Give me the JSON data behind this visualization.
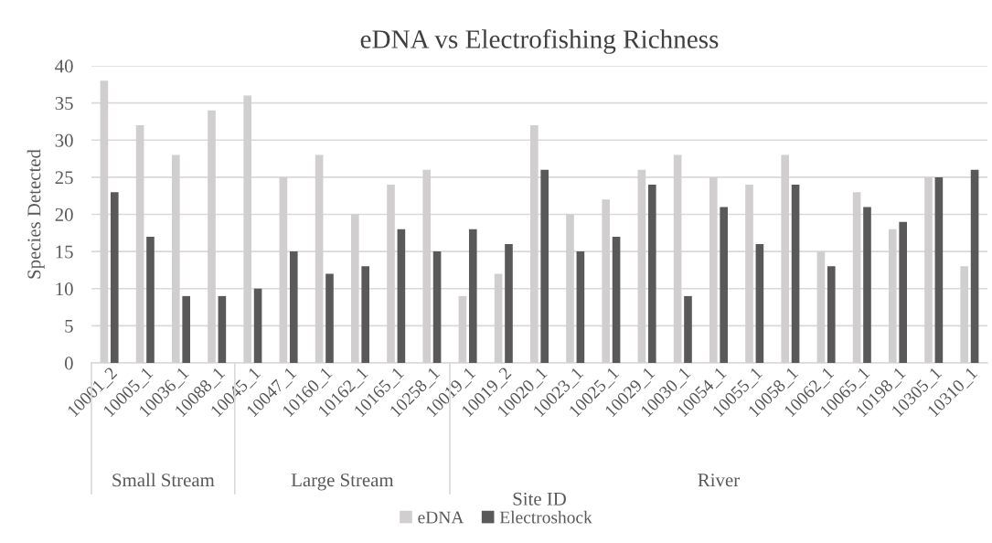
{
  "chart_data": {
    "type": "bar",
    "title": "eDNA vs Electrofishing Richness",
    "xlabel": "Site ID",
    "ylabel": "Species Detected",
    "categories": [
      "10001_2",
      "10005_1",
      "10036_1",
      "10088_1",
      "10045_1",
      "10047_1",
      "10160_1",
      "10162_1",
      "10165_1",
      "10258_1",
      "10019_1",
      "10019_2",
      "10020_1",
      "10023_1",
      "10025_1",
      "10029_1",
      "10030_1",
      "10054_1",
      "10055_1",
      "10058_1",
      "10062_1",
      "10065_1",
      "10198_1",
      "10305_1",
      "10310_1"
    ],
    "series": [
      {
        "name": "eDNA",
        "color": "#d0cece",
        "values": [
          38,
          32,
          28,
          34,
          36,
          25,
          28,
          20,
          24,
          26,
          9,
          12,
          32,
          20,
          22,
          26,
          28,
          25,
          24,
          28,
          15,
          23,
          18,
          25,
          13
        ]
      },
      {
        "name": "Electroshock",
        "color": "#595959",
        "values": [
          23,
          17,
          9,
          9,
          10,
          15,
          12,
          13,
          18,
          15,
          18,
          16,
          26,
          15,
          17,
          24,
          9,
          21,
          16,
          24,
          13,
          21,
          19,
          25,
          26
        ]
      }
    ],
    "annotations": [
      "Small Stream",
      "Large Stream",
      "River"
    ],
    "ylim": [
      0,
      40
    ],
    "yticks": [
      0,
      5,
      10,
      15,
      20,
      25,
      30,
      35,
      40
    ],
    "grid": "y",
    "legend": "bottom"
  }
}
